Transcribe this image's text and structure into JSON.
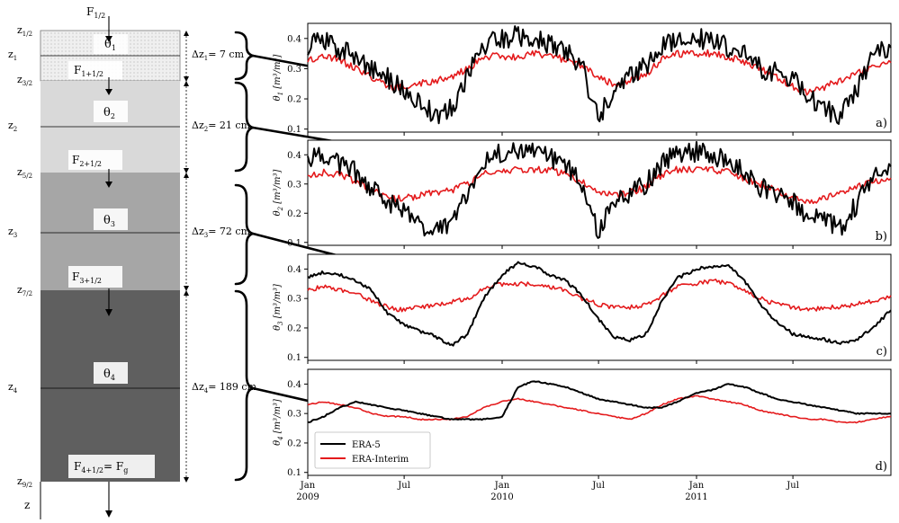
{
  "soil_column": {
    "flux_labels": {
      "top": [
        "F",
        "1/2"
      ],
      "f1": [
        "F",
        "1+1/2"
      ],
      "f2": [
        "F",
        "2+1/2"
      ],
      "f3": [
        "F",
        "3+1/2"
      ],
      "bottom": [
        "F",
        "4+1/2",
        "= F",
        "g"
      ]
    },
    "layers": [
      {
        "theta": [
          "θ",
          "1"
        ],
        "dz_label": [
          "Δz",
          "1",
          "= 7 cm"
        ],
        "color": "#eeeeee"
      },
      {
        "theta": [
          "θ",
          "2"
        ],
        "dz_label": [
          "Δz",
          "2",
          "= 21 cm"
        ],
        "color": "#d9d9d9"
      },
      {
        "theta": [
          "θ",
          "3"
        ],
        "dz_label": [
          "Δz",
          "3",
          "= 72 cm"
        ],
        "color": "#a6a6a6"
      },
      {
        "theta": [
          "θ",
          "4"
        ],
        "dz_label": [
          "Δz",
          "4",
          "= 189 cm"
        ],
        "color": "#606060"
      }
    ],
    "depth_labels": [
      [
        "z",
        "1/2"
      ],
      [
        "z",
        "1"
      ],
      [
        "z",
        "3/2"
      ],
      [
        "z",
        "2"
      ],
      [
        "z",
        "5/2"
      ],
      [
        "z",
        "3"
      ],
      [
        "z",
        "7/2"
      ],
      [
        "z",
        "4"
      ],
      [
        "z",
        "9/2"
      ]
    ],
    "axis_label": "z"
  },
  "chart_data": {
    "type": "line",
    "legend": [
      "ERA-5",
      "ERA-Interim"
    ],
    "colors": {
      "era5": "#000000",
      "erai": "#e41a1c"
    },
    "x_ticks": [
      {
        "label": "Jan",
        "sub": "2009",
        "day": 0
      },
      {
        "label": "Jul",
        "sub": "",
        "day": 181
      },
      {
        "label": "Jan",
        "sub": "2010",
        "day": 365
      },
      {
        "label": "Jul",
        "sub": "",
        "day": 546
      },
      {
        "label": "Jan",
        "sub": "2011",
        "day": 730
      },
      {
        "label": "Jul",
        "sub": "",
        "day": 911
      }
    ],
    "x_range_days": [
      0,
      1095
    ],
    "ylim": [
      0.09,
      0.45
    ],
    "y_ticks": [
      "0.1",
      "0.2",
      "0.3",
      "0.4"
    ],
    "panels": [
      {
        "letter": "a)",
        "ylabel_main": "θ",
        "ylabel_sub": "1",
        "ylabel_units": "[m³/m³]",
        "series": [
          {
            "name": "ERA-5",
            "x": [
              0,
              30,
              60,
              90,
              120,
              150,
              180,
              210,
              240,
              270,
              300,
              330,
              365,
              395,
              425,
              455,
              485,
              515,
              545,
              575,
              605,
              635,
              665,
              695,
              730,
              760,
              790,
              820,
              850,
              880,
              910,
              940,
              970,
              1000,
              1030,
              1060,
              1095
            ],
            "y": [
              0.38,
              0.4,
              0.36,
              0.34,
              0.3,
              0.27,
              0.23,
              0.19,
              0.14,
              0.17,
              0.27,
              0.38,
              0.4,
              0.41,
              0.4,
              0.38,
              0.36,
              0.31,
              0.13,
              0.23,
              0.27,
              0.31,
              0.38,
              0.4,
              0.4,
              0.39,
              0.37,
              0.35,
              0.3,
              0.29,
              0.27,
              0.21,
              0.17,
              0.14,
              0.23,
              0.34,
              0.37
            ]
          },
          {
            "name": "ERA-Interim",
            "x": [
              0,
              30,
              60,
              90,
              120,
              150,
              180,
              210,
              240,
              270,
              300,
              330,
              365,
              395,
              425,
              455,
              485,
              515,
              545,
              575,
              605,
              635,
              665,
              695,
              730,
              760,
              790,
              820,
              850,
              880,
              910,
              940,
              970,
              1000,
              1030,
              1060,
              1095
            ],
            "y": [
              0.33,
              0.34,
              0.33,
              0.3,
              0.27,
              0.24,
              0.24,
              0.25,
              0.26,
              0.27,
              0.3,
              0.34,
              0.34,
              0.34,
              0.35,
              0.34,
              0.33,
              0.31,
              0.27,
              0.25,
              0.26,
              0.28,
              0.33,
              0.35,
              0.35,
              0.35,
              0.34,
              0.32,
              0.3,
              0.27,
              0.24,
              0.22,
              0.24,
              0.26,
              0.28,
              0.31,
              0.32
            ]
          }
        ]
      },
      {
        "letter": "b)",
        "ylabel_main": "θ",
        "ylabel_sub": "2",
        "ylabel_units": "[m³/m³]",
        "series": [
          {
            "name": "ERA-5",
            "x": [
              0,
              30,
              60,
              90,
              120,
              150,
              180,
              210,
              240,
              270,
              300,
              330,
              365,
              395,
              425,
              455,
              485,
              515,
              545,
              575,
              605,
              635,
              665,
              695,
              730,
              760,
              790,
              820,
              850,
              880,
              910,
              940,
              970,
              1000,
              1030,
              1060,
              1095
            ],
            "y": [
              0.38,
              0.4,
              0.37,
              0.34,
              0.28,
              0.24,
              0.2,
              0.16,
              0.14,
              0.16,
              0.26,
              0.37,
              0.41,
              0.42,
              0.41,
              0.39,
              0.36,
              0.3,
              0.14,
              0.23,
              0.27,
              0.3,
              0.37,
              0.41,
              0.41,
              0.4,
              0.38,
              0.35,
              0.29,
              0.27,
              0.24,
              0.19,
              0.17,
              0.15,
              0.23,
              0.32,
              0.36
            ]
          },
          {
            "name": "ERA-Interim",
            "x": [
              0,
              30,
              60,
              90,
              120,
              150,
              180,
              210,
              240,
              270,
              300,
              330,
              365,
              395,
              425,
              455,
              485,
              515,
              545,
              575,
              605,
              635,
              665,
              695,
              730,
              760,
              790,
              820,
              850,
              880,
              910,
              940,
              970,
              1000,
              1030,
              1060,
              1095
            ],
            "y": [
              0.33,
              0.34,
              0.33,
              0.31,
              0.28,
              0.25,
              0.25,
              0.26,
              0.27,
              0.28,
              0.3,
              0.34,
              0.34,
              0.35,
              0.35,
              0.35,
              0.33,
              0.31,
              0.27,
              0.26,
              0.27,
              0.29,
              0.33,
              0.35,
              0.35,
              0.35,
              0.34,
              0.32,
              0.3,
              0.28,
              0.25,
              0.24,
              0.25,
              0.27,
              0.29,
              0.31,
              0.32
            ]
          }
        ]
      },
      {
        "letter": "c)",
        "ylabel_main": "θ",
        "ylabel_sub": "3",
        "ylabel_units": "[m³/m³]",
        "series": [
          {
            "name": "ERA-5",
            "x": [
              0,
              30,
              60,
              90,
              120,
              150,
              180,
              210,
              240,
              270,
              300,
              330,
              365,
              395,
              425,
              455,
              485,
              515,
              545,
              575,
              605,
              635,
              665,
              695,
              730,
              760,
              790,
              820,
              850,
              880,
              910,
              940,
              970,
              1000,
              1030,
              1060,
              1095
            ],
            "y": [
              0.37,
              0.39,
              0.38,
              0.36,
              0.33,
              0.25,
              0.21,
              0.19,
              0.17,
              0.14,
              0.18,
              0.3,
              0.38,
              0.42,
              0.41,
              0.38,
              0.36,
              0.31,
              0.23,
              0.17,
              0.16,
              0.18,
              0.29,
              0.37,
              0.4,
              0.41,
              0.41,
              0.36,
              0.28,
              0.22,
              0.18,
              0.17,
              0.16,
              0.15,
              0.16,
              0.2,
              0.26
            ]
          },
          {
            "name": "ERA-Interim",
            "x": [
              0,
              30,
              60,
              90,
              120,
              150,
              180,
              210,
              240,
              270,
              300,
              330,
              365,
              395,
              425,
              455,
              485,
              515,
              545,
              575,
              605,
              635,
              665,
              695,
              730,
              760,
              790,
              820,
              850,
              880,
              910,
              940,
              970,
              1000,
              1030,
              1060,
              1095
            ],
            "y": [
              0.33,
              0.34,
              0.33,
              0.32,
              0.29,
              0.27,
              0.26,
              0.27,
              0.28,
              0.29,
              0.3,
              0.33,
              0.35,
              0.35,
              0.35,
              0.34,
              0.33,
              0.3,
              0.28,
              0.27,
              0.27,
              0.28,
              0.31,
              0.34,
              0.35,
              0.36,
              0.35,
              0.33,
              0.3,
              0.28,
              0.27,
              0.26,
              0.27,
              0.27,
              0.28,
              0.29,
              0.31
            ]
          }
        ]
      },
      {
        "letter": "d)",
        "ylabel_main": "θ",
        "ylabel_sub": "4",
        "ylabel_units": "[m³/m³]",
        "series": [
          {
            "name": "ERA-5",
            "x": [
              0,
              30,
              60,
              90,
              120,
              150,
              180,
              210,
              240,
              270,
              300,
              330,
              365,
              395,
              425,
              455,
              485,
              515,
              545,
              575,
              605,
              635,
              665,
              695,
              730,
              760,
              790,
              820,
              850,
              880,
              910,
              940,
              970,
              1000,
              1030,
              1060,
              1095
            ],
            "y": [
              0.27,
              0.29,
              0.32,
              0.34,
              0.33,
              0.32,
              0.31,
              0.3,
              0.29,
              0.28,
              0.28,
              0.28,
              0.29,
              0.39,
              0.41,
              0.4,
              0.39,
              0.37,
              0.35,
              0.34,
              0.33,
              0.32,
              0.32,
              0.34,
              0.37,
              0.38,
              0.4,
              0.39,
              0.37,
              0.35,
              0.34,
              0.33,
              0.32,
              0.31,
              0.3,
              0.3,
              0.3
            ]
          },
          {
            "name": "ERA-Interim",
            "x": [
              0,
              30,
              60,
              90,
              120,
              150,
              180,
              210,
              240,
              270,
              300,
              330,
              365,
              395,
              425,
              455,
              485,
              515,
              545,
              575,
              605,
              635,
              665,
              695,
              730,
              760,
              790,
              820,
              850,
              880,
              910,
              940,
              970,
              1000,
              1030,
              1060,
              1095
            ],
            "y": [
              0.33,
              0.34,
              0.33,
              0.32,
              0.3,
              0.29,
              0.29,
              0.28,
              0.28,
              0.28,
              0.29,
              0.32,
              0.34,
              0.35,
              0.34,
              0.33,
              0.32,
              0.31,
              0.3,
              0.29,
              0.28,
              0.3,
              0.33,
              0.35,
              0.36,
              0.35,
              0.34,
              0.33,
              0.31,
              0.3,
              0.29,
              0.28,
              0.28,
              0.27,
              0.27,
              0.28,
              0.29
            ]
          }
        ]
      }
    ]
  }
}
